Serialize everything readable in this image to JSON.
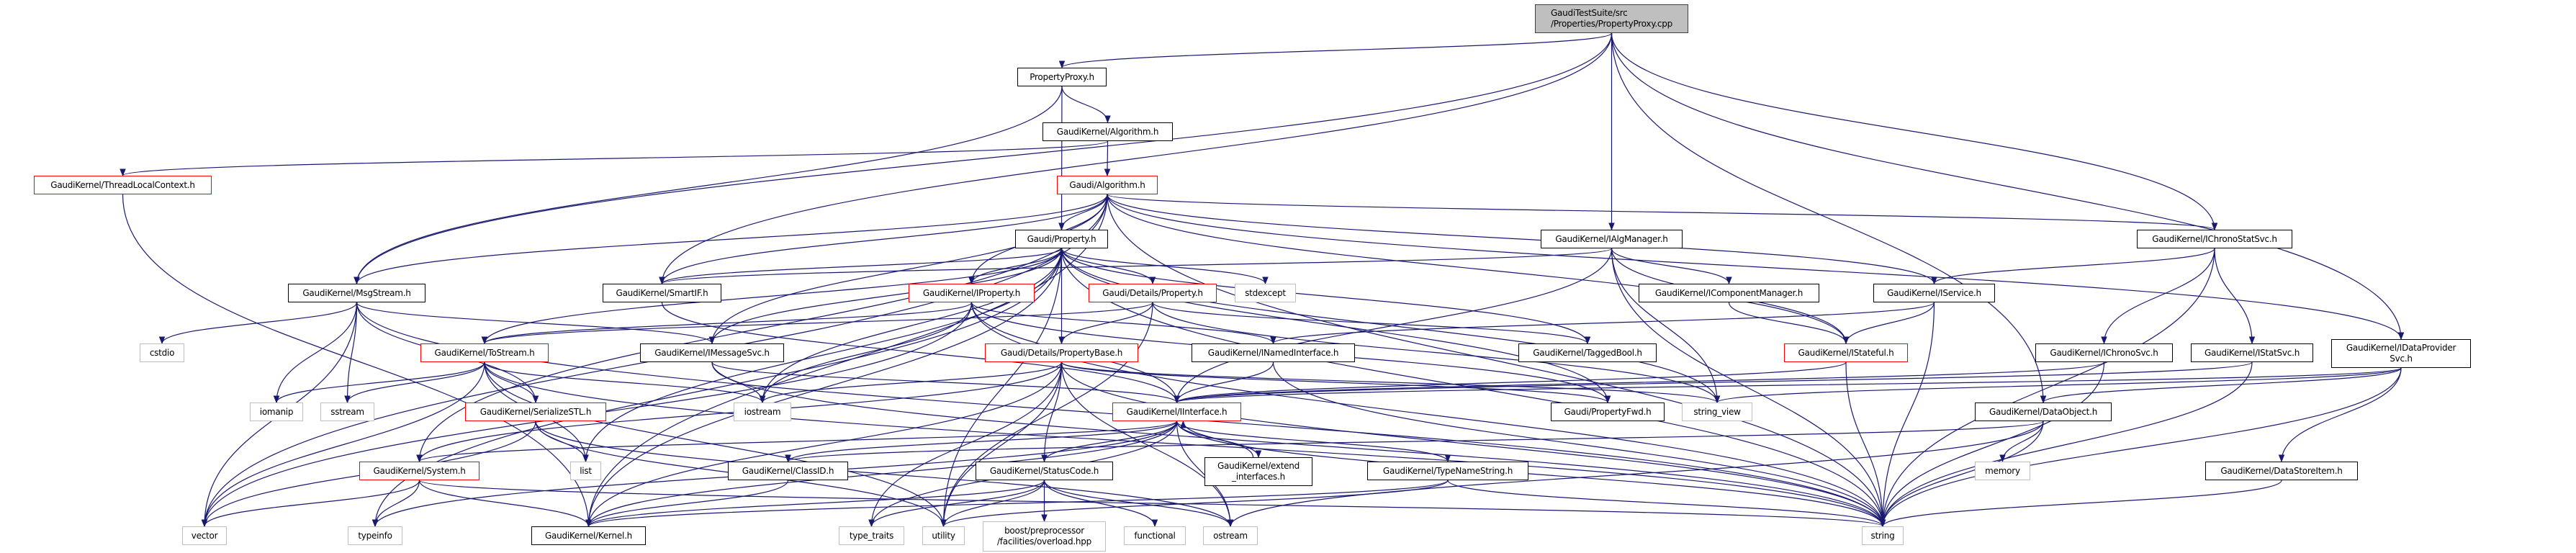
{
  "colors": {
    "edge": "#191970",
    "normal_border": "#000000",
    "truncated_border": "#ff0000",
    "external_border": "#bfbfbf",
    "root_fill": "#bfbfbf"
  },
  "nodes": [
    {
      "id": "root",
      "label": "GaudiTestSuite/src\n/Properties/PropertyProxy.cpp",
      "kind": "root"
    },
    {
      "id": "PropertyProxy",
      "label": "PropertyProxy.h",
      "kind": "normal"
    },
    {
      "id": "GKAlgorithm",
      "label": "GaudiKernel/Algorithm.h",
      "kind": "normal"
    },
    {
      "id": "ThreadLocalContext",
      "label": "GaudiKernel/ThreadLocalContext.h",
      "kind": "red"
    },
    {
      "id": "GAlgorithm",
      "label": "Gaudi/Algorithm.h",
      "kind": "red"
    },
    {
      "id": "Property",
      "label": "Gaudi/Property.h",
      "kind": "normal"
    },
    {
      "id": "IAlgManager",
      "label": "GaudiKernel/IAlgManager.h",
      "kind": "normal"
    },
    {
      "id": "IChronoStatSvc",
      "label": "GaudiKernel/IChronoStatSvc.h",
      "kind": "normal"
    },
    {
      "id": "MsgStream",
      "label": "GaudiKernel/MsgStream.h",
      "kind": "normal"
    },
    {
      "id": "SmartIF",
      "label": "GaudiKernel/SmartIF.h",
      "kind": "normal"
    },
    {
      "id": "IProperty",
      "label": "GaudiKernel/IProperty.h",
      "kind": "red"
    },
    {
      "id": "DetailsProperty",
      "label": "Gaudi/Details/Property.h",
      "kind": "red"
    },
    {
      "id": "stdexcept",
      "label": "stdexcept",
      "kind": "external"
    },
    {
      "id": "IComponentManager",
      "label": "GaudiKernel/IComponentManager.h",
      "kind": "normal"
    },
    {
      "id": "IService",
      "label": "GaudiKernel/IService.h",
      "kind": "normal"
    },
    {
      "id": "cstdio",
      "label": "cstdio",
      "kind": "external"
    },
    {
      "id": "ToStream",
      "label": "GaudiKernel/ToStream.h",
      "kind": "red"
    },
    {
      "id": "IMessageSvc",
      "label": "GaudiKernel/IMessageSvc.h",
      "kind": "normal"
    },
    {
      "id": "PropertyBase",
      "label": "Gaudi/Details/PropertyBase.h",
      "kind": "red"
    },
    {
      "id": "INamedInterface",
      "label": "GaudiKernel/INamedInterface.h",
      "kind": "normal"
    },
    {
      "id": "TaggedBool",
      "label": "GaudiKernel/TaggedBool.h",
      "kind": "normal"
    },
    {
      "id": "IStateful",
      "label": "GaudiKernel/IStateful.h",
      "kind": "red"
    },
    {
      "id": "IChronoSvc",
      "label": "GaudiKernel/IChronoSvc.h",
      "kind": "normal"
    },
    {
      "id": "IStatSvc",
      "label": "GaudiKernel/IStatSvc.h",
      "kind": "normal"
    },
    {
      "id": "IDataProviderSvc",
      "label": "GaudiKernel/IDataProvider\nSvc.h",
      "kind": "normal"
    },
    {
      "id": "iomanip",
      "label": "iomanip",
      "kind": "external"
    },
    {
      "id": "sstream",
      "label": "sstream",
      "kind": "external"
    },
    {
      "id": "SerializeSTL",
      "label": "GaudiKernel/SerializeSTL.h",
      "kind": "red"
    },
    {
      "id": "iostream",
      "label": "iostream",
      "kind": "external"
    },
    {
      "id": "IInterface",
      "label": "GaudiKernel/IInterface.h",
      "kind": "red"
    },
    {
      "id": "PropertyFwd",
      "label": "Gaudi/PropertyFwd.h",
      "kind": "normal"
    },
    {
      "id": "string_view",
      "label": "string_view",
      "kind": "external"
    },
    {
      "id": "DataObject",
      "label": "GaudiKernel/DataObject.h",
      "kind": "normal"
    },
    {
      "id": "System",
      "label": "GaudiKernel/System.h",
      "kind": "red"
    },
    {
      "id": "list",
      "label": "list",
      "kind": "external"
    },
    {
      "id": "ClassID",
      "label": "GaudiKernel/ClassID.h",
      "kind": "normal"
    },
    {
      "id": "StatusCode",
      "label": "GaudiKernel/StatusCode.h",
      "kind": "normal"
    },
    {
      "id": "extend_interfaces",
      "label": "GaudiKernel/extend\n_interfaces.h",
      "kind": "normal"
    },
    {
      "id": "TypeNameString",
      "label": "GaudiKernel/TypeNameString.h",
      "kind": "normal"
    },
    {
      "id": "memory",
      "label": "memory",
      "kind": "external"
    },
    {
      "id": "DataStoreItem",
      "label": "GaudiKernel/DataStoreItem.h",
      "kind": "normal"
    },
    {
      "id": "vector",
      "label": "vector",
      "kind": "external"
    },
    {
      "id": "typeinfo",
      "label": "typeinfo",
      "kind": "external"
    },
    {
      "id": "Kernel",
      "label": "GaudiKernel/Kernel.h",
      "kind": "normal"
    },
    {
      "id": "type_traits",
      "label": "type_traits",
      "kind": "external"
    },
    {
      "id": "utility",
      "label": "utility",
      "kind": "external"
    },
    {
      "id": "boost_overload",
      "label": "boost/preprocessor\n/facilities/overload.hpp",
      "kind": "external"
    },
    {
      "id": "functional",
      "label": "functional",
      "kind": "external"
    },
    {
      "id": "ostream",
      "label": "ostream",
      "kind": "external"
    },
    {
      "id": "string",
      "label": "string",
      "kind": "external"
    }
  ],
  "edges": [
    [
      "root",
      "PropertyProxy"
    ],
    [
      "root",
      "IAlgManager"
    ],
    [
      "root",
      "IChronoStatSvc"
    ],
    [
      "root",
      "IDataProviderSvc"
    ],
    [
      "root",
      "DataObject"
    ],
    [
      "root",
      "MsgStream"
    ],
    [
      "root",
      "SmartIF"
    ],
    [
      "PropertyProxy",
      "GKAlgorithm"
    ],
    [
      "PropertyProxy",
      "Property"
    ],
    [
      "PropertyProxy",
      "MsgStream"
    ],
    [
      "GKAlgorithm",
      "GAlgorithm"
    ],
    [
      "GKAlgorithm",
      "ThreadLocalContext"
    ],
    [
      "ThreadLocalContext",
      "Kernel"
    ],
    [
      "GAlgorithm",
      "Property"
    ],
    [
      "GAlgorithm",
      "IProperty"
    ],
    [
      "GAlgorithm",
      "IService"
    ],
    [
      "GAlgorithm",
      "IStateful"
    ],
    [
      "GAlgorithm",
      "IChronoStatSvc"
    ],
    [
      "GAlgorithm",
      "IDataProviderSvc"
    ],
    [
      "GAlgorithm",
      "MsgStream"
    ],
    [
      "GAlgorithm",
      "SmartIF"
    ],
    [
      "GAlgorithm",
      "System"
    ],
    [
      "GAlgorithm",
      "vector"
    ],
    [
      "GAlgorithm",
      "string"
    ],
    [
      "GAlgorithm",
      "Kernel"
    ],
    [
      "GAlgorithm",
      "IMessageSvc"
    ],
    [
      "Property",
      "IProperty"
    ],
    [
      "Property",
      "DetailsProperty"
    ],
    [
      "Property",
      "PropertyBase"
    ],
    [
      "Property",
      "SmartIF"
    ],
    [
      "Property",
      "TaggedBool"
    ],
    [
      "Property",
      "ToStream"
    ],
    [
      "Property",
      "PropertyFwd"
    ],
    [
      "Property",
      "stdexcept"
    ],
    [
      "Property",
      "string"
    ],
    [
      "Property",
      "string_view"
    ],
    [
      "Property",
      "utility"
    ],
    [
      "Property",
      "typeinfo"
    ],
    [
      "Property",
      "IMessageSvc"
    ],
    [
      "Property",
      "list"
    ],
    [
      "Property",
      "iostream"
    ],
    [
      "Property",
      "Kernel"
    ],
    [
      "IAlgManager",
      "IComponentManager"
    ],
    [
      "IAlgManager",
      "SmartIF"
    ],
    [
      "IAlgManager",
      "string"
    ],
    [
      "IAlgManager",
      "IStateful"
    ],
    [
      "IAlgManager",
      "IInterface"
    ],
    [
      "IAlgManager",
      "string_view"
    ],
    [
      "IComponentManager",
      "IStateful"
    ],
    [
      "IService",
      "INamedInterface"
    ],
    [
      "IService",
      "IStateful"
    ],
    [
      "IService",
      "string"
    ],
    [
      "IStateful",
      "IInterface"
    ],
    [
      "IStateful",
      "string"
    ],
    [
      "IChronoStatSvc",
      "IService"
    ],
    [
      "IChronoStatSvc",
      "IChronoSvc"
    ],
    [
      "IChronoStatSvc",
      "IStatSvc"
    ],
    [
      "IChronoStatSvc",
      "string"
    ],
    [
      "IChronoSvc",
      "IInterface"
    ],
    [
      "IChronoSvc",
      "string"
    ],
    [
      "IStatSvc",
      "IInterface"
    ],
    [
      "IStatSvc",
      "string"
    ],
    [
      "IDataProviderSvc",
      "DataObject"
    ],
    [
      "IDataProviderSvc",
      "DataStoreItem"
    ],
    [
      "IDataProviderSvc",
      "IInterface"
    ],
    [
      "IDataProviderSvc",
      "string"
    ],
    [
      "IDataProviderSvc",
      "string_view"
    ],
    [
      "DataObject",
      "memory"
    ],
    [
      "DataObject",
      "string"
    ],
    [
      "DataObject",
      "ostream"
    ],
    [
      "DataObject",
      "ClassID"
    ],
    [
      "DataStoreItem",
      "string"
    ],
    [
      "MsgStream",
      "cstdio"
    ],
    [
      "MsgStream",
      "iomanip"
    ],
    [
      "MsgStream",
      "sstream"
    ],
    [
      "MsgStream",
      "vector"
    ],
    [
      "MsgStream",
      "SerializeSTL"
    ],
    [
      "MsgStream",
      "IMessageSvc"
    ],
    [
      "MsgStream",
      "string"
    ],
    [
      "ToStream",
      "iomanip"
    ],
    [
      "ToStream",
      "sstream"
    ],
    [
      "ToStream",
      "SerializeSTL"
    ],
    [
      "ToStream",
      "list"
    ],
    [
      "ToStream",
      "vector"
    ],
    [
      "ToStream",
      "iostream"
    ],
    [
      "ToStream",
      "string"
    ],
    [
      "ToStream",
      "utility"
    ],
    [
      "SerializeSTL",
      "list"
    ],
    [
      "SerializeSTL",
      "vector"
    ],
    [
      "SerializeSTL",
      "ostream"
    ],
    [
      "SerializeSTL",
      "utility"
    ],
    [
      "System",
      "vector"
    ],
    [
      "System",
      "typeinfo"
    ],
    [
      "System",
      "Kernel"
    ],
    [
      "System",
      "string"
    ],
    [
      "IProperty",
      "IInterface"
    ],
    [
      "IProperty",
      "INamedInterface"
    ],
    [
      "IProperty",
      "PropertyFwd"
    ],
    [
      "IProperty",
      "iostream"
    ],
    [
      "IProperty",
      "string"
    ],
    [
      "IProperty",
      "vector"
    ],
    [
      "IProperty",
      "ToStream"
    ],
    [
      "DetailsProperty",
      "PropertyBase"
    ],
    [
      "DetailsProperty",
      "ToStream"
    ],
    [
      "DetailsProperty",
      "string_view"
    ],
    [
      "DetailsProperty",
      "utility"
    ],
    [
      "DetailsProperty",
      "TaggedBool"
    ],
    [
      "PropertyBase",
      "StatusCode"
    ],
    [
      "PropertyBase",
      "iostream"
    ],
    [
      "PropertyBase",
      "utility"
    ],
    [
      "PropertyBase",
      "type_traits"
    ],
    [
      "PropertyBase",
      "string"
    ],
    [
      "PropertyBase",
      "string_view"
    ],
    [
      "PropertyBase",
      "PropertyFwd"
    ],
    [
      "PropertyBase",
      "Kernel"
    ],
    [
      "PropertyBase",
      "System"
    ],
    [
      "PropertyBase",
      "ostream"
    ],
    [
      "IMessageSvc",
      "IInterface"
    ],
    [
      "IMessageSvc",
      "iostream"
    ],
    [
      "IMessageSvc",
      "string"
    ],
    [
      "INamedInterface",
      "IInterface"
    ],
    [
      "INamedInterface",
      "string"
    ],
    [
      "SmartIF",
      "IInterface"
    ],
    [
      "IInterface",
      "System"
    ],
    [
      "IInterface",
      "Kernel"
    ],
    [
      "IInterface",
      "StatusCode"
    ],
    [
      "IInterface",
      "extend_interfaces"
    ],
    [
      "IInterface",
      "ostream"
    ],
    [
      "IInterface",
      "type_traits"
    ],
    [
      "IInterface",
      "typeinfo"
    ],
    [
      "IInterface",
      "ClassID"
    ],
    [
      "IInterface",
      "TypeNameString"
    ],
    [
      "IInterface",
      "string"
    ],
    [
      "extend_interfaces",
      "IInterface"
    ],
    [
      "StatusCode",
      "Kernel"
    ],
    [
      "StatusCode",
      "boost_overload"
    ],
    [
      "StatusCode",
      "functional"
    ],
    [
      "StatusCode",
      "ostream"
    ],
    [
      "StatusCode",
      "type_traits"
    ],
    [
      "StatusCode",
      "utility"
    ],
    [
      "ClassID",
      "Kernel"
    ],
    [
      "TypeNameString",
      "string"
    ],
    [
      "TypeNameString",
      "utility"
    ],
    [
      "TypeNameString",
      "Kernel"
    ]
  ]
}
